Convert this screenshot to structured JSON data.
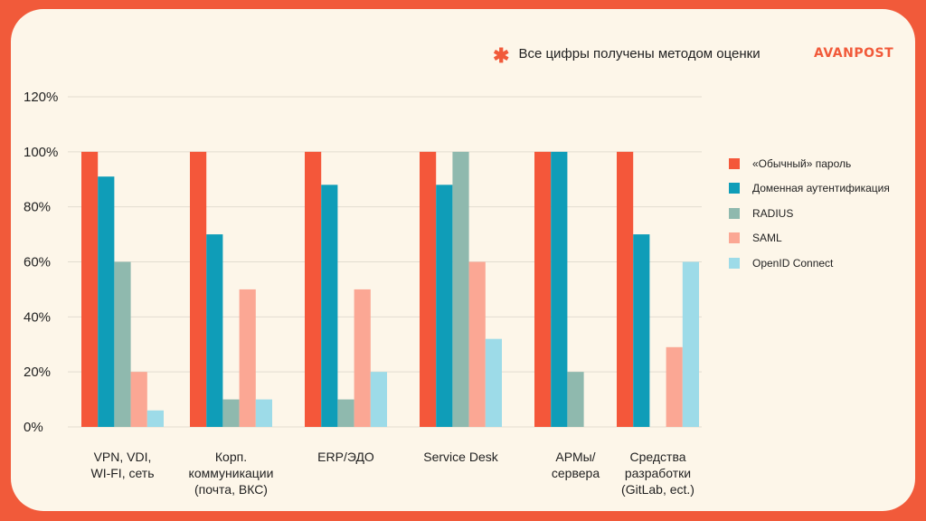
{
  "note": {
    "asterisk": "✱",
    "text": "Все цифры получены методом оценки"
  },
  "brand": {
    "logo": "AVANPOST",
    "color": "#F15A3A"
  },
  "chart_data": {
    "type": "bar",
    "ylim": [
      0,
      120
    ],
    "yticks": [
      0,
      20,
      40,
      60,
      80,
      100,
      120
    ],
    "ytick_labels": [
      "0%",
      "20%",
      "40%",
      "60%",
      "80%",
      "100%",
      "120%"
    ],
    "grid": true,
    "legend_position": "right",
    "categories": [
      [
        "VPN, VDI,",
        "WI-FI, сеть"
      ],
      [
        "Корп.",
        "коммуникации",
        "(почта, ВКС)"
      ],
      [
        "ERP/ЭДО"
      ],
      [
        "Service Desk"
      ],
      [
        "АРМы/",
        "сервера"
      ],
      [
        "Средства",
        "разработки",
        "(GitLab, ect.)"
      ]
    ],
    "series": [
      {
        "name": "«Обычный» пароль",
        "color": "#F4573A",
        "values": [
          100,
          100,
          100,
          100,
          100,
          100
        ]
      },
      {
        "name": "Доменная аутентификация",
        "color": "#0F9DB8",
        "values": [
          91,
          70,
          88,
          88,
          100,
          70
        ]
      },
      {
        "name": "RADIUS",
        "color": "#8FB9AE",
        "values": [
          60,
          10,
          10,
          100,
          20,
          0
        ]
      },
      {
        "name": "SAML",
        "color": "#FBA794",
        "values": [
          20,
          50,
          50,
          60,
          0,
          29
        ]
      },
      {
        "name": "OpenID Connect",
        "color": "#9DDBE8",
        "values": [
          6,
          10,
          20,
          32,
          0,
          60
        ]
      }
    ]
  }
}
